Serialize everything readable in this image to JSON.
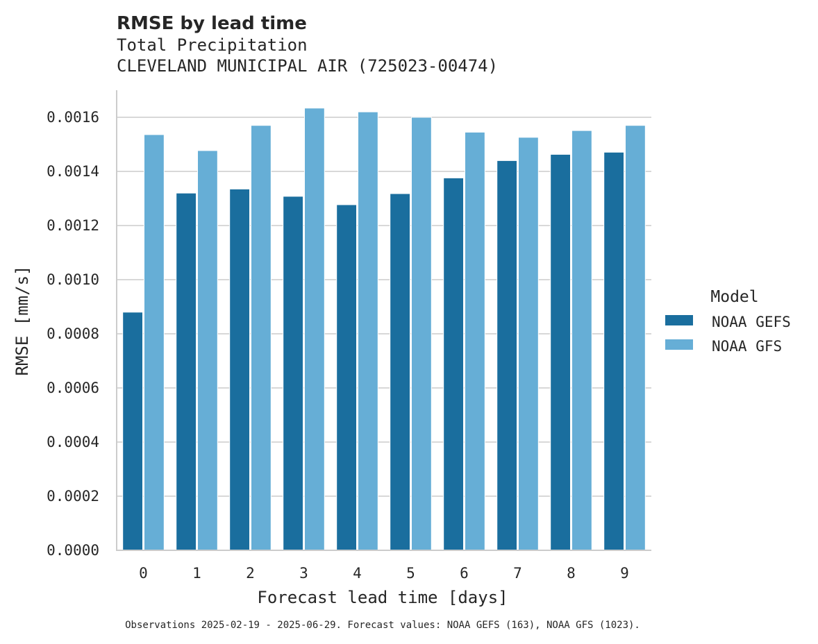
{
  "chart_data": {
    "type": "bar",
    "title": "RMSE by lead time",
    "subtitle_lines": [
      "Total Precipitation",
      "CLEVELAND MUNICIPAL AIR (725023-00474)"
    ],
    "xlabel": "Forecast lead time [days]",
    "ylabel": "RMSE [mm/s]",
    "categories": [
      "0",
      "1",
      "2",
      "3",
      "4",
      "5",
      "6",
      "7",
      "8",
      "9"
    ],
    "ylim": [
      0,
      0.0017
    ],
    "yticks": [
      0.0,
      0.0002,
      0.0004,
      0.0006,
      0.0008,
      0.001,
      0.0012,
      0.0014,
      0.0016
    ],
    "ytick_labels": [
      "0.0000",
      "0.0002",
      "0.0004",
      "0.0006",
      "0.0008",
      "0.0010",
      "0.0012",
      "0.0014",
      "0.0016"
    ],
    "grid": true,
    "legend_title": "Model",
    "legend_position": "right",
    "series": [
      {
        "name": "NOAA GEFS",
        "color": "#1a6e9e",
        "values": [
          0.00088,
          0.00132,
          0.001335,
          0.001308,
          0.001277,
          0.001318,
          0.001376,
          0.00144,
          0.001463,
          0.001471
        ]
      },
      {
        "name": "NOAA GFS",
        "color": "#66aed6",
        "values": [
          0.001536,
          0.001477,
          0.00157,
          0.001634,
          0.00162,
          0.0016,
          0.001545,
          0.001526,
          0.001551,
          0.00157
        ]
      }
    ],
    "footnote": "Observations 2025-02-19 - 2025-06-29. Forecast values: NOAA GEFS (163), NOAA GFS (1023)."
  }
}
